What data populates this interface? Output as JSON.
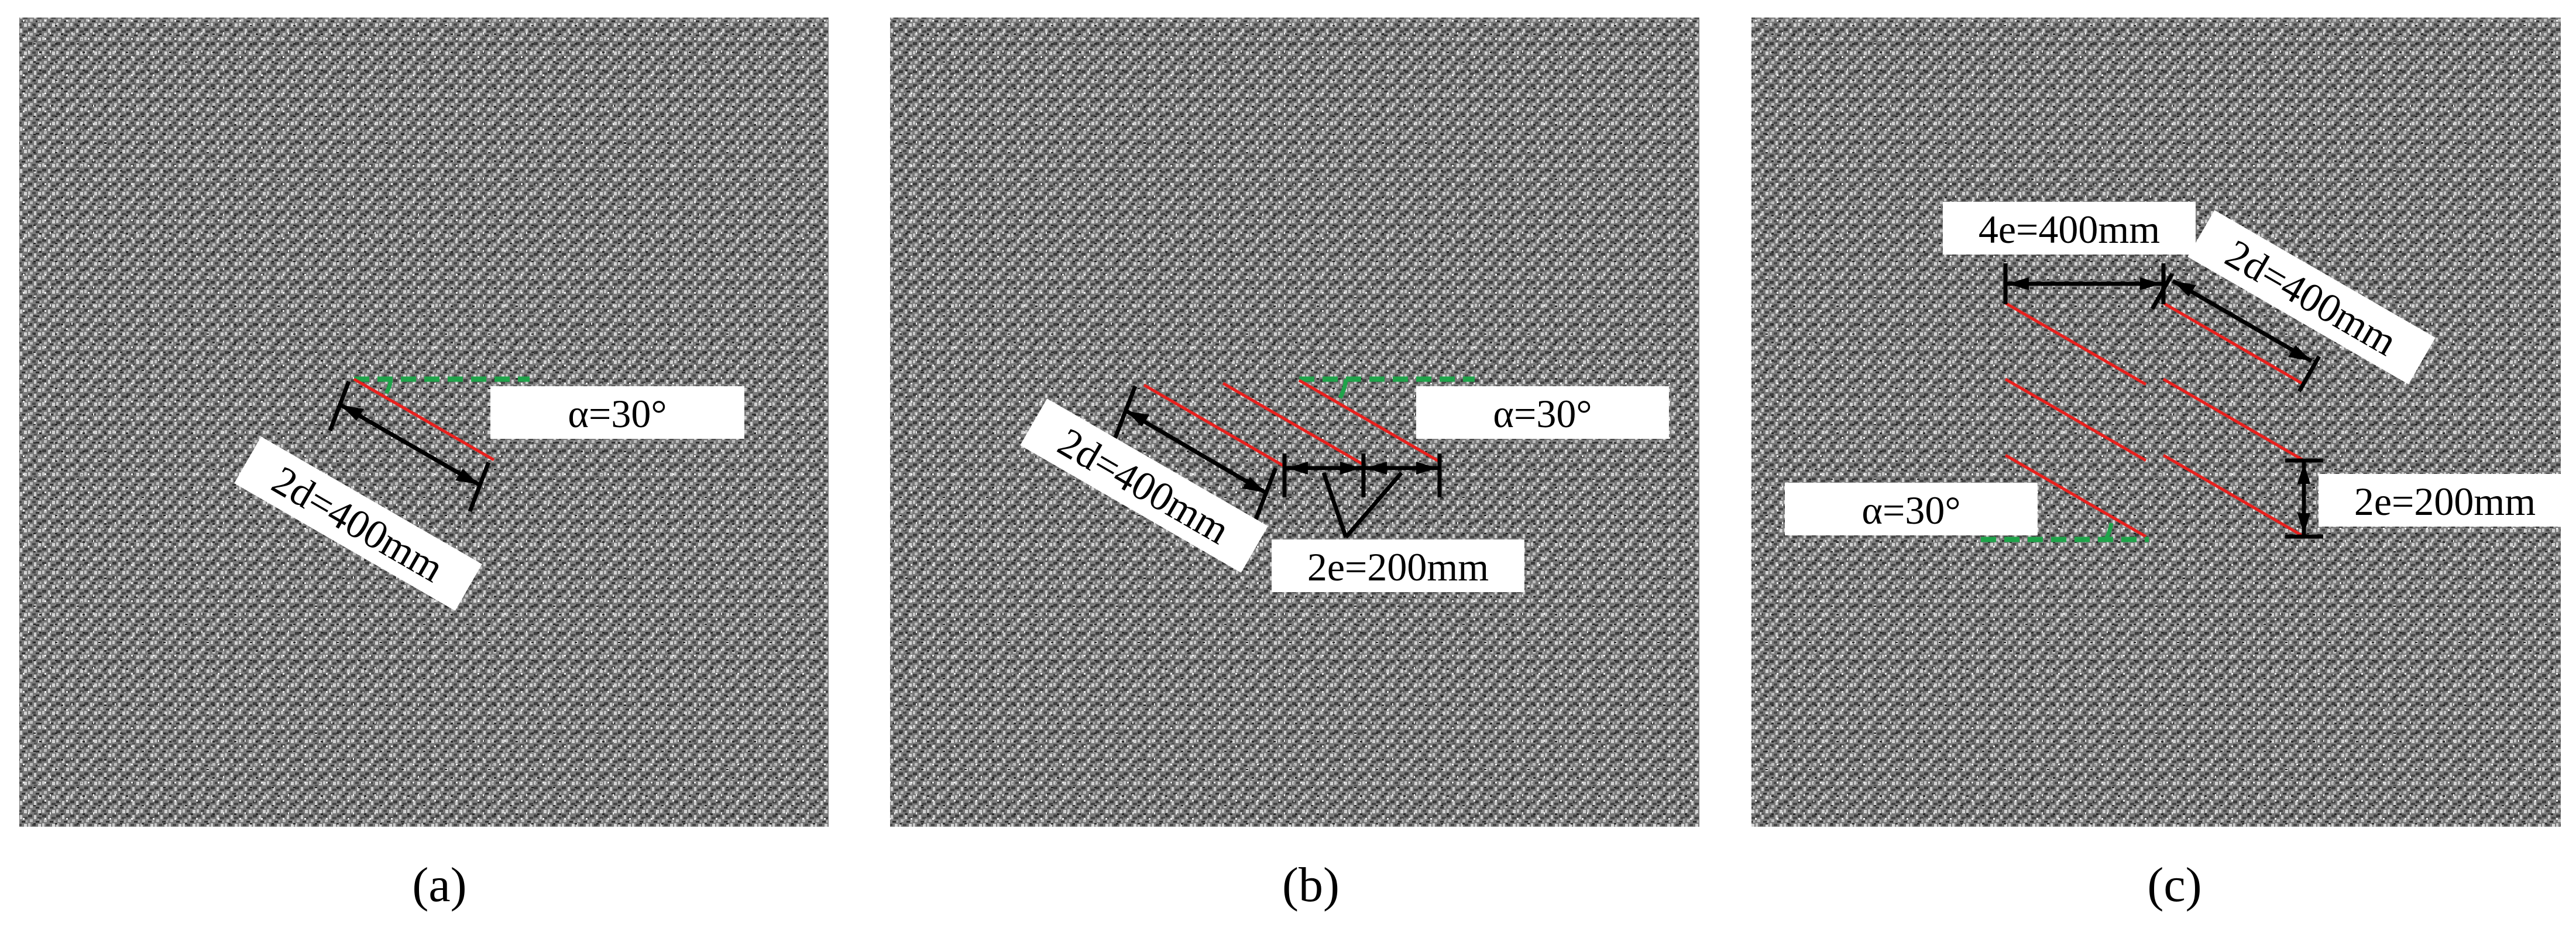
{
  "colors": {
    "specimen_base": "#7d7d7d",
    "specimen_dark": "#3a3a3a",
    "specimen_light": "#d6d6d6",
    "crack": "#e8201d",
    "reference_line": "#1fa34a",
    "dimension": "#000000",
    "label_box": "#ffffff"
  },
  "panels": [
    {
      "caption": "(a)",
      "labels": {
        "angle": "α=30°",
        "length": "2d=400mm"
      }
    },
    {
      "caption": "(b)",
      "labels": {
        "angle": "α=30°",
        "length": "2d=400mm",
        "spacing": "2e=200mm"
      }
    },
    {
      "caption": "(c)",
      "labels": {
        "horizontal_spacing": "4e=400mm",
        "length": "2d=400mm",
        "vertical_spacing": "2e=200mm",
        "angle": "α=30°"
      }
    }
  ]
}
